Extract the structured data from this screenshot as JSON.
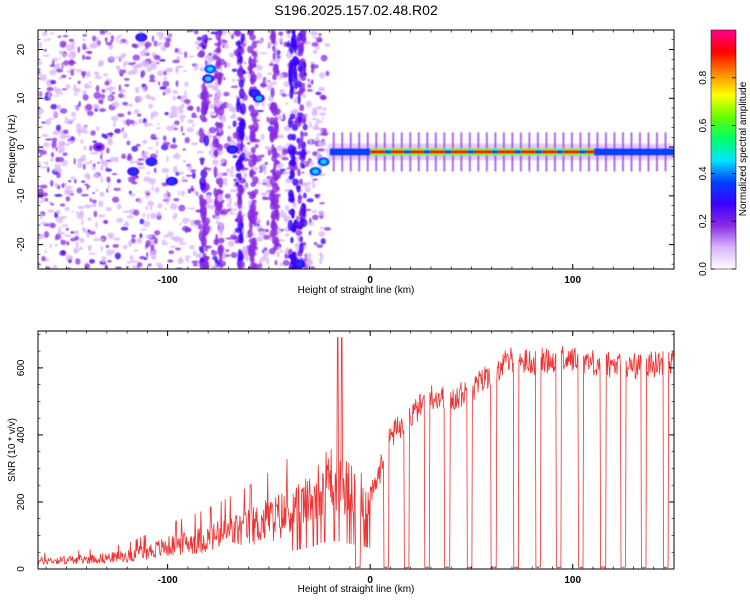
{
  "title": "S196.2025.157.02.48.R02",
  "chart_data": [
    {
      "type": "heatmap",
      "title": "S196.2025.157.02.48.R02",
      "xlabel": "Height of straight line (km)",
      "ylabel": "Frequency (Hz)",
      "xlim": [
        -164,
        150
      ],
      "ylim": [
        -25,
        24
      ],
      "x_ticks": [
        -100,
        0,
        100
      ],
      "x_tick_labels": [
        "-100",
        "0",
        "100"
      ],
      "y_ticks": [
        -20,
        -10,
        0,
        10,
        20
      ],
      "y_tick_labels": [
        "-20",
        "-10",
        "0",
        "10",
        "20"
      ],
      "colorbar": {
        "label": "Normalized spectral amplitude",
        "range": [
          0.0,
          1.0
        ],
        "ticks": [
          0.0,
          0.2,
          0.4,
          0.6,
          0.8
        ],
        "tick_labels": [
          "0.0",
          "0.2",
          "0.4",
          "0.6",
          "0.8"
        ],
        "colors": [
          "#ffffff",
          "#d9b3ff",
          "#8a2be2",
          "#3a00ff",
          "#0040ff",
          "#00e5ff",
          "#00ff66",
          "#66ff00",
          "#ffff00",
          "#ff8800",
          "#ff0000",
          "#ff0090"
        ]
      },
      "features": {
        "line_freq_hz": -1,
        "line_start_km": -20,
        "speckle_end_km": -25
      }
    },
    {
      "type": "line",
      "xlabel": "Height of straight line (km)",
      "ylabel": "SNR (10 * v/v)",
      "xlim": [
        -164,
        150
      ],
      "ylim": [
        0,
        710
      ],
      "x_ticks": [
        -100,
        0,
        100
      ],
      "x_tick_labels": [
        "-100",
        "0",
        "100"
      ],
      "y_ticks": [
        0,
        200,
        400,
        600
      ],
      "y_tick_labels": [
        "0",
        "200",
        "400",
        "600"
      ],
      "series": [
        {
          "name": "SNR",
          "color": "#ee3333",
          "envelope_x": [
            -164,
            -140,
            -120,
            -100,
            -80,
            -60,
            -40,
            -30,
            -20,
            -10,
            0,
            5,
            10,
            20,
            30,
            40,
            50,
            60,
            70,
            80,
            90,
            100,
            110,
            120,
            130,
            140,
            150
          ],
          "envelope_y": [
            25,
            30,
            40,
            70,
            95,
            130,
            175,
            215,
            290,
            250,
            210,
            300,
            400,
            460,
            520,
            510,
            540,
            590,
            630,
            620,
            630,
            630,
            620,
            610,
            610,
            615,
            620
          ],
          "spikes_x": [
            -16,
            -14
          ],
          "spikes_y": [
            690,
            690
          ],
          "dropouts_x": [
            -6,
            8,
            18,
            28,
            38,
            49,
            61,
            72,
            83,
            93,
            104,
            115,
            125,
            135,
            146
          ]
        }
      ]
    }
  ]
}
